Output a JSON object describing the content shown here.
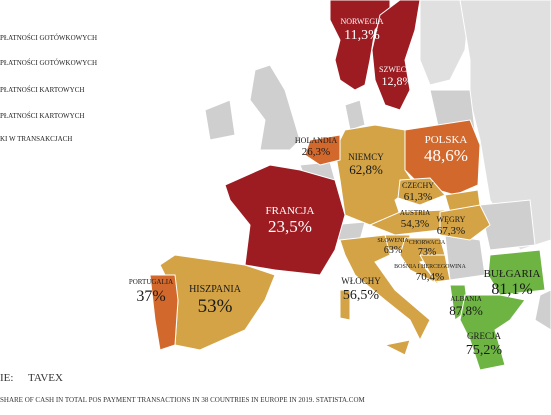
{
  "legend": {
    "items": [
      "PŁATNOŚCI GOTÓWKOWYCH",
      "PŁATNOŚCI GOTÓWKOWYCH",
      "PŁATNOŚCI KARTOWYCH",
      "PŁATNOŚCI KARTOWYCH",
      "KI W TRANSAKCJACH"
    ]
  },
  "source": {
    "label": "IE:",
    "brand": "TAVEX"
  },
  "footnote": "SHARE OF CASH IN TOTAL POS PAYMENT TRANSACTIONS IN 38 COUNTRIES IN EUROPE IN 2019. STATISTA.COM",
  "countries": [
    {
      "name": "NORWEGIA",
      "value": "11,3%"
    },
    {
      "name": "SZWECJA",
      "value": "12,8%"
    },
    {
      "name": "POLSKA",
      "value": "48,6%"
    },
    {
      "name": "HOLANDIA",
      "value": "26,3%"
    },
    {
      "name": "NIEMCY",
      "value": "62,8%"
    },
    {
      "name": "FRANCJA",
      "value": "23,5%"
    },
    {
      "name": "CZECHY",
      "value": "61,3%"
    },
    {
      "name": "AUSTRIA",
      "value": "54,3%"
    },
    {
      "name": "WĘGRY",
      "value": "67,3%"
    },
    {
      "name": "SŁOWENIA",
      "value": "63%"
    },
    {
      "name": "CHORWACJA",
      "value": "73%"
    },
    {
      "name": "BOŚNIA I HERCEGOWINA",
      "value": "70,4%"
    },
    {
      "name": "WŁOCHY",
      "value": "56,5%"
    },
    {
      "name": "HISZPANIA",
      "value": "53%"
    },
    {
      "name": "PORTUGALIA",
      "value": "37%"
    },
    {
      "name": "BUŁGARIA",
      "value": "81,1%"
    },
    {
      "name": "ALBANIA",
      "value": "87,8%"
    },
    {
      "name": "GRECJA",
      "value": "75,2%"
    }
  ]
}
